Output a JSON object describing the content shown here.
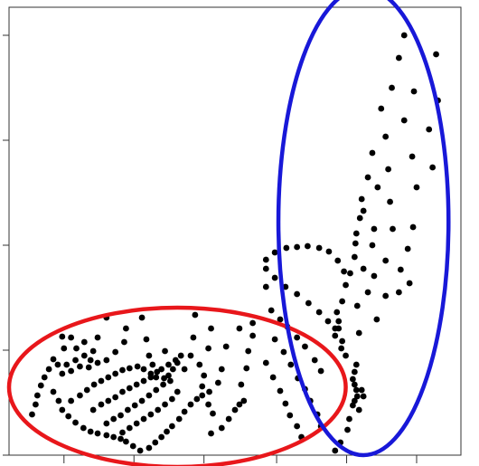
{
  "chart_data": {
    "type": "scatter",
    "title": "",
    "xlabel": "",
    "ylabel": "",
    "grid": false,
    "xlim": [
      0,
      510
    ],
    "ylim": [
      0,
      495
    ],
    "x_ticks": [
      62,
      141,
      220,
      302,
      381,
      460
    ],
    "y_ticks": [
      0,
      116,
      232,
      348,
      464
    ],
    "colors": {
      "points": "#000000",
      "red_ellipse": "#e8171b",
      "blue_ellipse": "#1818d8",
      "frame": "#333333"
    },
    "annotations": [
      {
        "shape": "ellipse",
        "color": "red",
        "cx": 190,
        "cy": 75,
        "rx": 190,
        "ry": 88
      },
      {
        "shape": "ellipse",
        "color": "blue",
        "cx": 400,
        "cy": 258,
        "rx": 96,
        "ry": 258
      }
    ],
    "series": [
      {
        "points": [
          [
            446,
            464
          ],
          [
            482,
            443
          ],
          [
            440,
            439
          ],
          [
            432,
            406
          ],
          [
            457,
            402
          ],
          [
            484,
            392
          ],
          [
            420,
            383
          ],
          [
            446,
            370
          ],
          [
            474,
            360
          ],
          [
            425,
            352
          ],
          [
            455,
            330
          ],
          [
            410,
            334
          ],
          [
            428,
            316
          ],
          [
            478,
            318
          ],
          [
            405,
            307
          ],
          [
            416,
            296
          ],
          [
            460,
            296
          ],
          [
            398,
            283
          ],
          [
            430,
            280
          ],
          [
            400,
            270
          ],
          [
            396,
            262
          ],
          [
            412,
            250
          ],
          [
            433,
            250
          ],
          [
            456,
            252
          ],
          [
            392,
            245
          ],
          [
            391,
            234
          ],
          [
            410,
            232
          ],
          [
            450,
            228
          ],
          [
            425,
            215
          ],
          [
            390,
            219
          ],
          [
            400,
            206
          ],
          [
            442,
            205
          ],
          [
            385,
            201
          ],
          [
            412,
            198
          ],
          [
            452,
            190
          ],
          [
            380,
            188
          ],
          [
            405,
            180
          ],
          [
            376,
            170
          ],
          [
            440,
            180
          ],
          [
            425,
            176
          ],
          [
            393,
            165
          ],
          [
            370,
            158
          ],
          [
            415,
            150
          ],
          [
            372,
            148
          ],
          [
            372,
            140
          ],
          [
            368,
            132
          ],
          [
            395,
            135
          ],
          [
            376,
            126
          ],
          [
            375,
            118
          ],
          [
            380,
            110
          ],
          [
            392,
            100
          ],
          [
            390,
            92
          ],
          [
            388,
            84
          ],
          [
            390,
            78
          ],
          [
            392,
            72
          ],
          [
            393,
            65
          ],
          [
            390,
            60
          ],
          [
            388,
            55
          ],
          [
            400,
            65
          ],
          [
            398,
            72
          ],
          [
            395,
            50
          ],
          [
            384,
            40
          ],
          [
            382,
            28
          ],
          [
            374,
            14
          ],
          [
            368,
            5
          ],
          [
            290,
            216
          ],
          [
            300,
            224
          ],
          [
            313,
            229
          ],
          [
            325,
            230
          ],
          [
            337,
            231
          ],
          [
            350,
            229
          ],
          [
            361,
            225
          ],
          [
            371,
            215
          ],
          [
            378,
            203
          ],
          [
            290,
            206
          ],
          [
            300,
            196
          ],
          [
            312,
            186
          ],
          [
            325,
            178
          ],
          [
            338,
            168
          ],
          [
            350,
            158
          ],
          [
            360,
            148
          ],
          [
            368,
            140
          ],
          [
            290,
            186
          ],
          [
            296,
            160
          ],
          [
            306,
            150
          ],
          [
            314,
            142
          ],
          [
            325,
            130
          ],
          [
            334,
            120
          ],
          [
            345,
            105
          ],
          [
            352,
            93
          ],
          [
            300,
            128
          ],
          [
            310,
            114
          ],
          [
            318,
            100
          ],
          [
            326,
            85
          ],
          [
            334,
            73
          ],
          [
            340,
            60
          ],
          [
            348,
            45
          ],
          [
            352,
            32
          ],
          [
            290,
            102
          ],
          [
            298,
            86
          ],
          [
            306,
            71
          ],
          [
            312,
            57
          ],
          [
            317,
            44
          ],
          [
            325,
            32
          ],
          [
            330,
            20
          ],
          [
            60,
            131
          ],
          [
            70,
            130
          ],
          [
            62,
            118
          ],
          [
            76,
            118
          ],
          [
            85,
            125
          ],
          [
            95,
            115
          ],
          [
            92,
            105
          ],
          [
            100,
            130
          ],
          [
            50,
            106
          ],
          [
            55,
            100
          ],
          [
            45,
            95
          ],
          [
            40,
            86
          ],
          [
            36,
            77
          ],
          [
            32,
            66
          ],
          [
            30,
            56
          ],
          [
            26,
            45
          ],
          [
            65,
            100
          ],
          [
            75,
            105
          ],
          [
            85,
            110
          ],
          [
            60,
            90
          ],
          [
            70,
            93
          ],
          [
            80,
            98
          ],
          [
            90,
            97
          ],
          [
            100,
            102
          ],
          [
            110,
            105
          ],
          [
            120,
            114
          ],
          [
            130,
            125
          ],
          [
            132,
            140
          ],
          [
            110,
            152
          ],
          [
            150,
            152
          ],
          [
            155,
            128
          ],
          [
            158,
            110
          ],
          [
            162,
            100
          ],
          [
            167,
            92
          ],
          [
            175,
            85
          ],
          [
            180,
            88
          ],
          [
            185,
            95
          ],
          [
            190,
            102
          ],
          [
            198,
            95
          ],
          [
            205,
            110
          ],
          [
            208,
            130
          ],
          [
            210,
            155
          ],
          [
            228,
            140
          ],
          [
            225,
            118
          ],
          [
            215,
            100
          ],
          [
            220,
            88
          ],
          [
            218,
            76
          ],
          [
            226,
            70
          ],
          [
            236,
            80
          ],
          [
            240,
            95
          ],
          [
            245,
            120
          ],
          [
            260,
            140
          ],
          [
            275,
            146
          ],
          [
            275,
            132
          ],
          [
            270,
            115
          ],
          [
            268,
            96
          ],
          [
            262,
            78
          ],
          [
            265,
            60
          ],
          [
            260,
            56
          ],
          [
            255,
            50
          ],
          [
            248,
            40
          ],
          [
            240,
            30
          ],
          [
            228,
            24
          ],
          [
            50,
            70
          ],
          [
            56,
            60
          ],
          [
            60,
            50
          ],
          [
            67,
            43
          ],
          [
            75,
            36
          ],
          [
            84,
            30
          ],
          [
            92,
            26
          ],
          [
            100,
            24
          ],
          [
            110,
            22
          ],
          [
            118,
            20
          ],
          [
            126,
            18
          ],
          [
            132,
            15
          ],
          [
            140,
            10
          ],
          [
            148,
            5
          ],
          [
            158,
            8
          ],
          [
            165,
            14
          ],
          [
            172,
            20
          ],
          [
            178,
            26
          ],
          [
            184,
            32
          ],
          [
            192,
            40
          ],
          [
            198,
            48
          ],
          [
            205,
            56
          ],
          [
            212,
            62
          ],
          [
            218,
            66
          ],
          [
            225,
            56
          ],
          [
            230,
            46
          ],
          [
            70,
            60
          ],
          [
            80,
            66
          ],
          [
            88,
            72
          ],
          [
            96,
            78
          ],
          [
            104,
            82
          ],
          [
            112,
            86
          ],
          [
            120,
            90
          ],
          [
            128,
            94
          ],
          [
            136,
            96
          ],
          [
            145,
            98
          ],
          [
            152,
            95
          ],
          [
            160,
            90
          ],
          [
            166,
            86
          ],
          [
            95,
            50
          ],
          [
            104,
            56
          ],
          [
            112,
            60
          ],
          [
            120,
            64
          ],
          [
            128,
            70
          ],
          [
            136,
            74
          ],
          [
            144,
            78
          ],
          [
            152,
            82
          ],
          [
            160,
            86
          ],
          [
            110,
            35
          ],
          [
            118,
            40
          ],
          [
            126,
            44
          ],
          [
            134,
            50
          ],
          [
            142,
            55
          ],
          [
            150,
            60
          ],
          [
            158,
            66
          ],
          [
            166,
            72
          ],
          [
            174,
            78
          ],
          [
            182,
            82
          ],
          [
            128,
            25
          ],
          [
            136,
            30
          ],
          [
            144,
            35
          ],
          [
            152,
            40
          ],
          [
            160,
            45
          ],
          [
            168,
            50
          ],
          [
            176,
            56
          ],
          [
            184,
            62
          ],
          [
            190,
            70
          ],
          [
            172,
            95
          ],
          [
            180,
            100
          ],
          [
            188,
            105
          ],
          [
            194,
            110
          ],
          [
            176,
            115
          ]
        ]
      }
    ]
  }
}
